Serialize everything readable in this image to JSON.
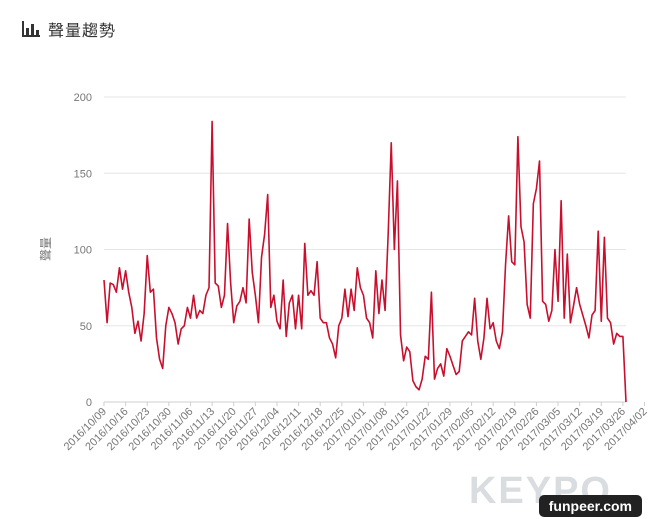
{
  "header": {
    "title": "聲量趨勢",
    "icon": "bar-chart-icon"
  },
  "brand": {
    "logo_text": "KEYPO"
  },
  "watermark": {
    "text": "funpeer.com"
  },
  "chart_data": {
    "type": "line",
    "title": "",
    "ylabel": "聲量",
    "xlabel": "",
    "ylim": [
      0,
      200
    ],
    "yticks": [
      0,
      50,
      100,
      150,
      200
    ],
    "grid": true,
    "color": "#c8102e",
    "x_start": "2016/10/09",
    "x_end": "2017/04/08",
    "xtick_labels": [
      "2016/10/09",
      "2016/10/16",
      "2016/10/23",
      "2016/10/30",
      "2016/11/06",
      "2016/11/13",
      "2016/11/20",
      "2016/11/27",
      "2016/12/04",
      "2016/12/11",
      "2016/12/18",
      "2016/12/25",
      "2017/01/01",
      "2017/01/08",
      "2017/01/15",
      "2017/01/22",
      "2017/01/29",
      "2017/02/05",
      "2017/02/12",
      "2017/02/19",
      "2017/02/26",
      "2017/03/05",
      "2017/03/12",
      "2017/03/19",
      "2017/03/26",
      "2017/04/02"
    ],
    "series": [
      {
        "values": [
          80,
          52,
          78,
          77,
          72,
          88,
          74,
          86,
          72,
          62,
          45,
          53,
          40,
          58,
          96,
          72,
          74,
          42,
          28,
          22,
          50,
          62,
          58,
          52,
          38,
          48,
          50,
          62,
          55,
          70,
          55,
          60,
          58,
          70,
          75,
          184,
          78,
          76,
          62,
          70,
          117,
          78,
          52,
          63,
          66,
          75,
          65,
          120,
          85,
          70,
          52,
          95,
          110,
          136,
          62,
          70,
          53,
          48,
          80,
          43,
          65,
          70,
          48,
          70,
          48,
          104,
          70,
          73,
          70,
          92,
          55,
          52,
          52,
          42,
          38,
          29,
          50,
          55,
          74,
          56,
          74,
          60,
          88,
          75,
          70,
          55,
          52,
          42,
          86,
          58,
          80,
          60,
          110,
          170,
          100,
          145,
          44,
          27,
          36,
          33,
          14,
          10,
          8,
          15,
          30,
          28,
          72,
          15,
          22,
          25,
          17,
          35,
          30,
          24,
          18,
          20,
          40,
          43,
          46,
          44,
          68,
          40,
          28,
          42,
          68,
          48,
          52,
          40,
          35,
          46,
          90,
          122,
          92,
          90,
          174,
          115,
          105,
          64,
          55,
          130,
          140,
          158,
          66,
          64,
          53,
          60,
          100,
          66,
          132,
          55,
          97,
          52,
          63,
          75,
          64,
          57,
          50,
          42,
          57,
          60,
          112,
          53,
          108,
          55,
          52,
          38,
          45,
          43,
          43,
          0
        ]
      }
    ]
  }
}
